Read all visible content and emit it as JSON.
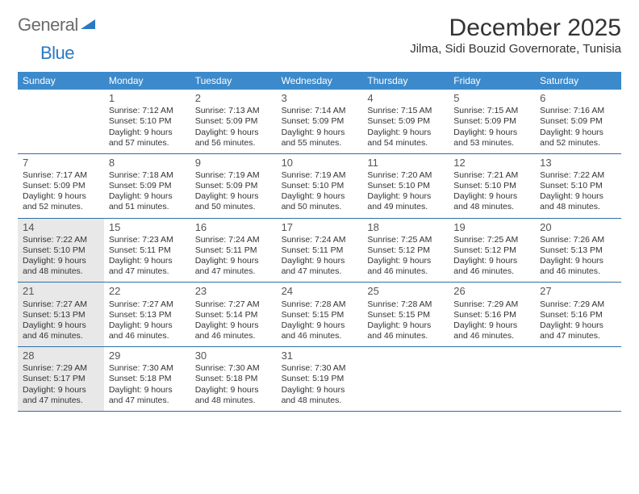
{
  "logo": {
    "text_general": "General",
    "text_blue": "Blue",
    "icon_color": "#2b79c2"
  },
  "title": "December 2025",
  "location": "Jilma, Sidi Bouzid Governorate, Tunisia",
  "colors": {
    "header_bg": "#3c8acb",
    "header_text": "#ffffff",
    "rule": "#2f6fa8",
    "shaded_bg": "#e8e8e8",
    "text": "#333333"
  },
  "weekdays": [
    "Sunday",
    "Monday",
    "Tuesday",
    "Wednesday",
    "Thursday",
    "Friday",
    "Saturday"
  ],
  "weeks": [
    [
      {
        "num": "",
        "sunrise": "",
        "sunset": "",
        "daylight": "",
        "shaded": false,
        "empty": true
      },
      {
        "num": "1",
        "sunrise": "Sunrise: 7:12 AM",
        "sunset": "Sunset: 5:10 PM",
        "daylight": "Daylight: 9 hours and 57 minutes.",
        "shaded": false
      },
      {
        "num": "2",
        "sunrise": "Sunrise: 7:13 AM",
        "sunset": "Sunset: 5:09 PM",
        "daylight": "Daylight: 9 hours and 56 minutes.",
        "shaded": false
      },
      {
        "num": "3",
        "sunrise": "Sunrise: 7:14 AM",
        "sunset": "Sunset: 5:09 PM",
        "daylight": "Daylight: 9 hours and 55 minutes.",
        "shaded": false
      },
      {
        "num": "4",
        "sunrise": "Sunrise: 7:15 AM",
        "sunset": "Sunset: 5:09 PM",
        "daylight": "Daylight: 9 hours and 54 minutes.",
        "shaded": false
      },
      {
        "num": "5",
        "sunrise": "Sunrise: 7:15 AM",
        "sunset": "Sunset: 5:09 PM",
        "daylight": "Daylight: 9 hours and 53 minutes.",
        "shaded": false
      },
      {
        "num": "6",
        "sunrise": "Sunrise: 7:16 AM",
        "sunset": "Sunset: 5:09 PM",
        "daylight": "Daylight: 9 hours and 52 minutes.",
        "shaded": false
      }
    ],
    [
      {
        "num": "7",
        "sunrise": "Sunrise: 7:17 AM",
        "sunset": "Sunset: 5:09 PM",
        "daylight": "Daylight: 9 hours and 52 minutes.",
        "shaded": false
      },
      {
        "num": "8",
        "sunrise": "Sunrise: 7:18 AM",
        "sunset": "Sunset: 5:09 PM",
        "daylight": "Daylight: 9 hours and 51 minutes.",
        "shaded": false
      },
      {
        "num": "9",
        "sunrise": "Sunrise: 7:19 AM",
        "sunset": "Sunset: 5:09 PM",
        "daylight": "Daylight: 9 hours and 50 minutes.",
        "shaded": false
      },
      {
        "num": "10",
        "sunrise": "Sunrise: 7:19 AM",
        "sunset": "Sunset: 5:10 PM",
        "daylight": "Daylight: 9 hours and 50 minutes.",
        "shaded": false
      },
      {
        "num": "11",
        "sunrise": "Sunrise: 7:20 AM",
        "sunset": "Sunset: 5:10 PM",
        "daylight": "Daylight: 9 hours and 49 minutes.",
        "shaded": false
      },
      {
        "num": "12",
        "sunrise": "Sunrise: 7:21 AM",
        "sunset": "Sunset: 5:10 PM",
        "daylight": "Daylight: 9 hours and 48 minutes.",
        "shaded": false
      },
      {
        "num": "13",
        "sunrise": "Sunrise: 7:22 AM",
        "sunset": "Sunset: 5:10 PM",
        "daylight": "Daylight: 9 hours and 48 minutes.",
        "shaded": false
      }
    ],
    [
      {
        "num": "14",
        "sunrise": "Sunrise: 7:22 AM",
        "sunset": "Sunset: 5:10 PM",
        "daylight": "Daylight: 9 hours and 48 minutes.",
        "shaded": true
      },
      {
        "num": "15",
        "sunrise": "Sunrise: 7:23 AM",
        "sunset": "Sunset: 5:11 PM",
        "daylight": "Daylight: 9 hours and 47 minutes.",
        "shaded": false
      },
      {
        "num": "16",
        "sunrise": "Sunrise: 7:24 AM",
        "sunset": "Sunset: 5:11 PM",
        "daylight": "Daylight: 9 hours and 47 minutes.",
        "shaded": false
      },
      {
        "num": "17",
        "sunrise": "Sunrise: 7:24 AM",
        "sunset": "Sunset: 5:11 PM",
        "daylight": "Daylight: 9 hours and 47 minutes.",
        "shaded": false
      },
      {
        "num": "18",
        "sunrise": "Sunrise: 7:25 AM",
        "sunset": "Sunset: 5:12 PM",
        "daylight": "Daylight: 9 hours and 46 minutes.",
        "shaded": false
      },
      {
        "num": "19",
        "sunrise": "Sunrise: 7:25 AM",
        "sunset": "Sunset: 5:12 PM",
        "daylight": "Daylight: 9 hours and 46 minutes.",
        "shaded": false
      },
      {
        "num": "20",
        "sunrise": "Sunrise: 7:26 AM",
        "sunset": "Sunset: 5:13 PM",
        "daylight": "Daylight: 9 hours and 46 minutes.",
        "shaded": false
      }
    ],
    [
      {
        "num": "21",
        "sunrise": "Sunrise: 7:27 AM",
        "sunset": "Sunset: 5:13 PM",
        "daylight": "Daylight: 9 hours and 46 minutes.",
        "shaded": true
      },
      {
        "num": "22",
        "sunrise": "Sunrise: 7:27 AM",
        "sunset": "Sunset: 5:13 PM",
        "daylight": "Daylight: 9 hours and 46 minutes.",
        "shaded": false
      },
      {
        "num": "23",
        "sunrise": "Sunrise: 7:27 AM",
        "sunset": "Sunset: 5:14 PM",
        "daylight": "Daylight: 9 hours and 46 minutes.",
        "shaded": false
      },
      {
        "num": "24",
        "sunrise": "Sunrise: 7:28 AM",
        "sunset": "Sunset: 5:15 PM",
        "daylight": "Daylight: 9 hours and 46 minutes.",
        "shaded": false
      },
      {
        "num": "25",
        "sunrise": "Sunrise: 7:28 AM",
        "sunset": "Sunset: 5:15 PM",
        "daylight": "Daylight: 9 hours and 46 minutes.",
        "shaded": false
      },
      {
        "num": "26",
        "sunrise": "Sunrise: 7:29 AM",
        "sunset": "Sunset: 5:16 PM",
        "daylight": "Daylight: 9 hours and 46 minutes.",
        "shaded": false
      },
      {
        "num": "27",
        "sunrise": "Sunrise: 7:29 AM",
        "sunset": "Sunset: 5:16 PM",
        "daylight": "Daylight: 9 hours and 47 minutes.",
        "shaded": false
      }
    ],
    [
      {
        "num": "28",
        "sunrise": "Sunrise: 7:29 AM",
        "sunset": "Sunset: 5:17 PM",
        "daylight": "Daylight: 9 hours and 47 minutes.",
        "shaded": true
      },
      {
        "num": "29",
        "sunrise": "Sunrise: 7:30 AM",
        "sunset": "Sunset: 5:18 PM",
        "daylight": "Daylight: 9 hours and 47 minutes.",
        "shaded": false
      },
      {
        "num": "30",
        "sunrise": "Sunrise: 7:30 AM",
        "sunset": "Sunset: 5:18 PM",
        "daylight": "Daylight: 9 hours and 48 minutes.",
        "shaded": false
      },
      {
        "num": "31",
        "sunrise": "Sunrise: 7:30 AM",
        "sunset": "Sunset: 5:19 PM",
        "daylight": "Daylight: 9 hours and 48 minutes.",
        "shaded": false
      },
      {
        "num": "",
        "sunrise": "",
        "sunset": "",
        "daylight": "",
        "shaded": false,
        "empty": true
      },
      {
        "num": "",
        "sunrise": "",
        "sunset": "",
        "daylight": "",
        "shaded": false,
        "empty": true
      },
      {
        "num": "",
        "sunrise": "",
        "sunset": "",
        "daylight": "",
        "shaded": false,
        "empty": true
      }
    ]
  ]
}
